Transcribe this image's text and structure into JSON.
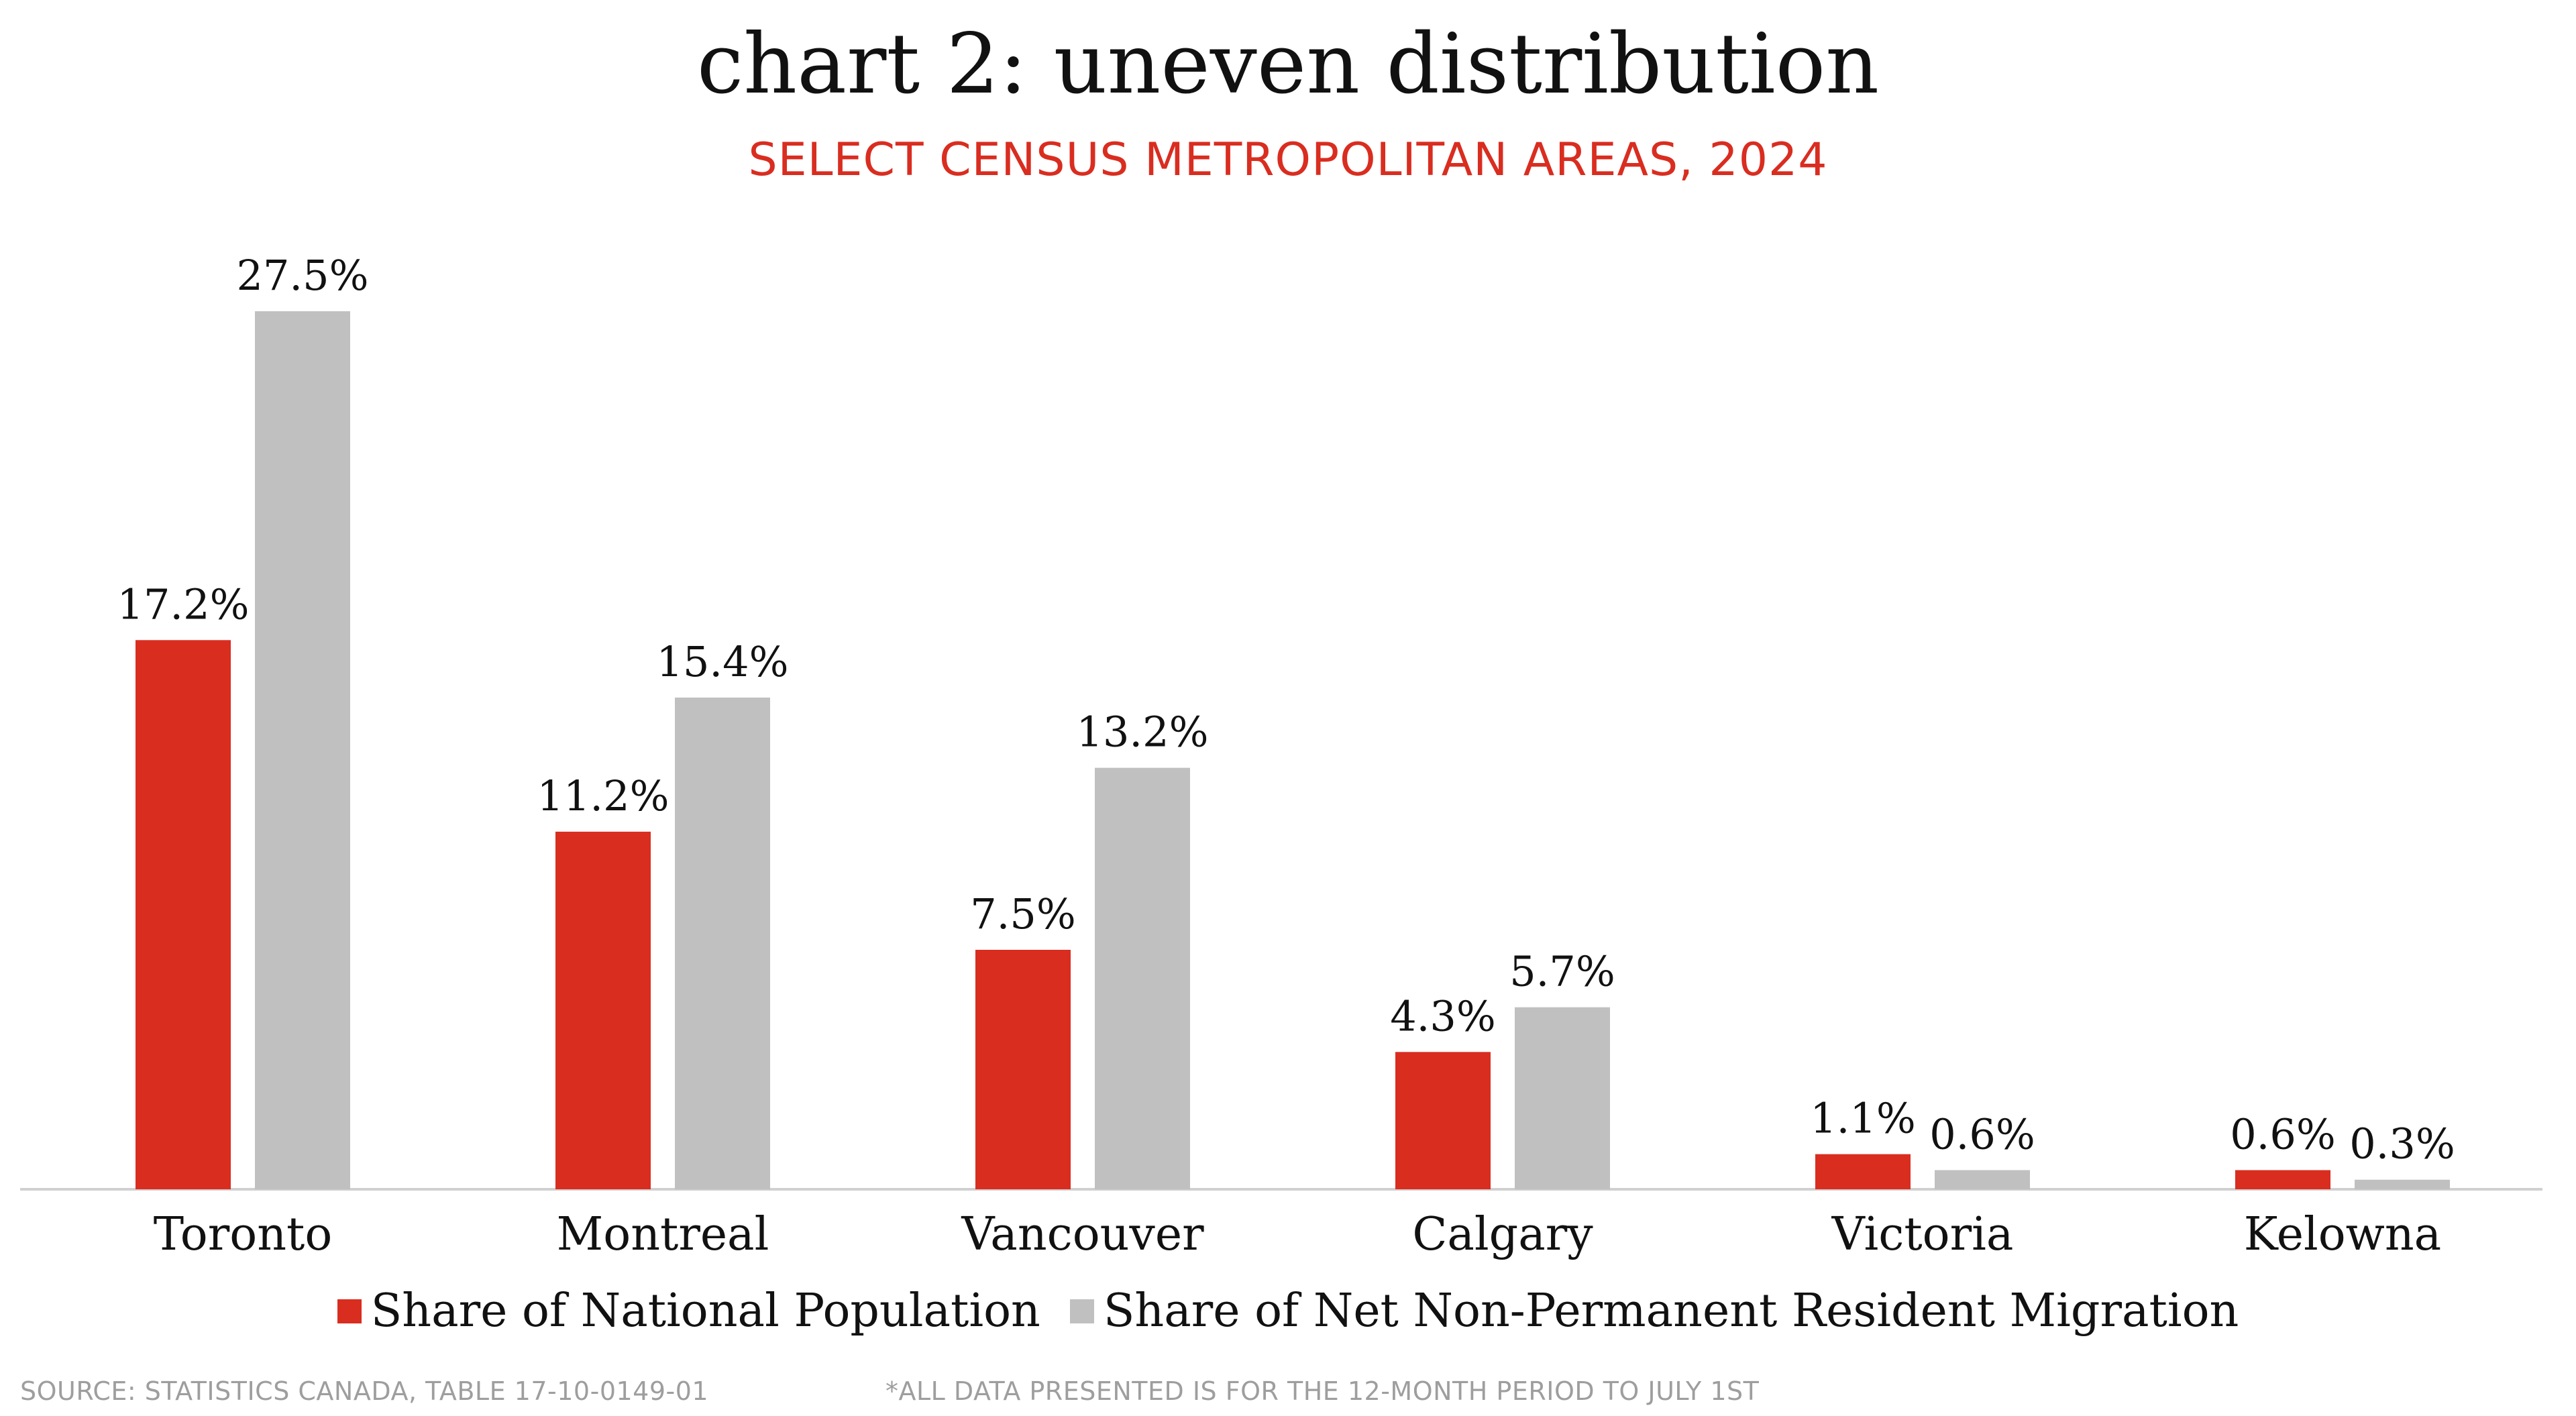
{
  "title": "chart 2: uneven distribution",
  "subtitle": "SELECT CENSUS METROPOLITAN AREAS, 2024",
  "colors": {
    "population": "#d92d20",
    "migration": "#c0c0c0",
    "title": "#111111",
    "subtitle": "#d92d20",
    "footer": "#9e9e9e"
  },
  "chart_data": {
    "type": "bar",
    "categories": [
      "Toronto",
      "Montreal",
      "Vancouver",
      "Calgary",
      "Victoria",
      "Kelowna"
    ],
    "series": [
      {
        "name": "Share of National Population",
        "values": [
          17.2,
          11.2,
          7.5,
          4.3,
          1.1,
          0.6
        ],
        "labels": [
          "17.2%",
          "11.2%",
          "7.5%",
          "4.3%",
          "1.1%",
          "0.6%"
        ]
      },
      {
        "name": "Share of Net Non-Permanent Resident Migration",
        "values": [
          27.5,
          15.4,
          13.2,
          5.7,
          0.6,
          0.3
        ],
        "labels": [
          "27.5%",
          "15.4%",
          "13.2%",
          "5.7%",
          "0.6%",
          "0.3%"
        ]
      }
    ],
    "ylim": [
      0,
      30
    ],
    "grid": false,
    "legend_position": "bottom"
  },
  "legend": {
    "population_label": "Share of National Population",
    "migration_label": "Share of Net Non-Permanent Resident Migration"
  },
  "footer": {
    "source": "SOURCE: STATISTICS CANADA, TABLE 17-10-0149-01",
    "note": "*ALL DATA PRESENTED IS FOR THE 12-MONTH PERIOD TO JULY 1ST"
  }
}
